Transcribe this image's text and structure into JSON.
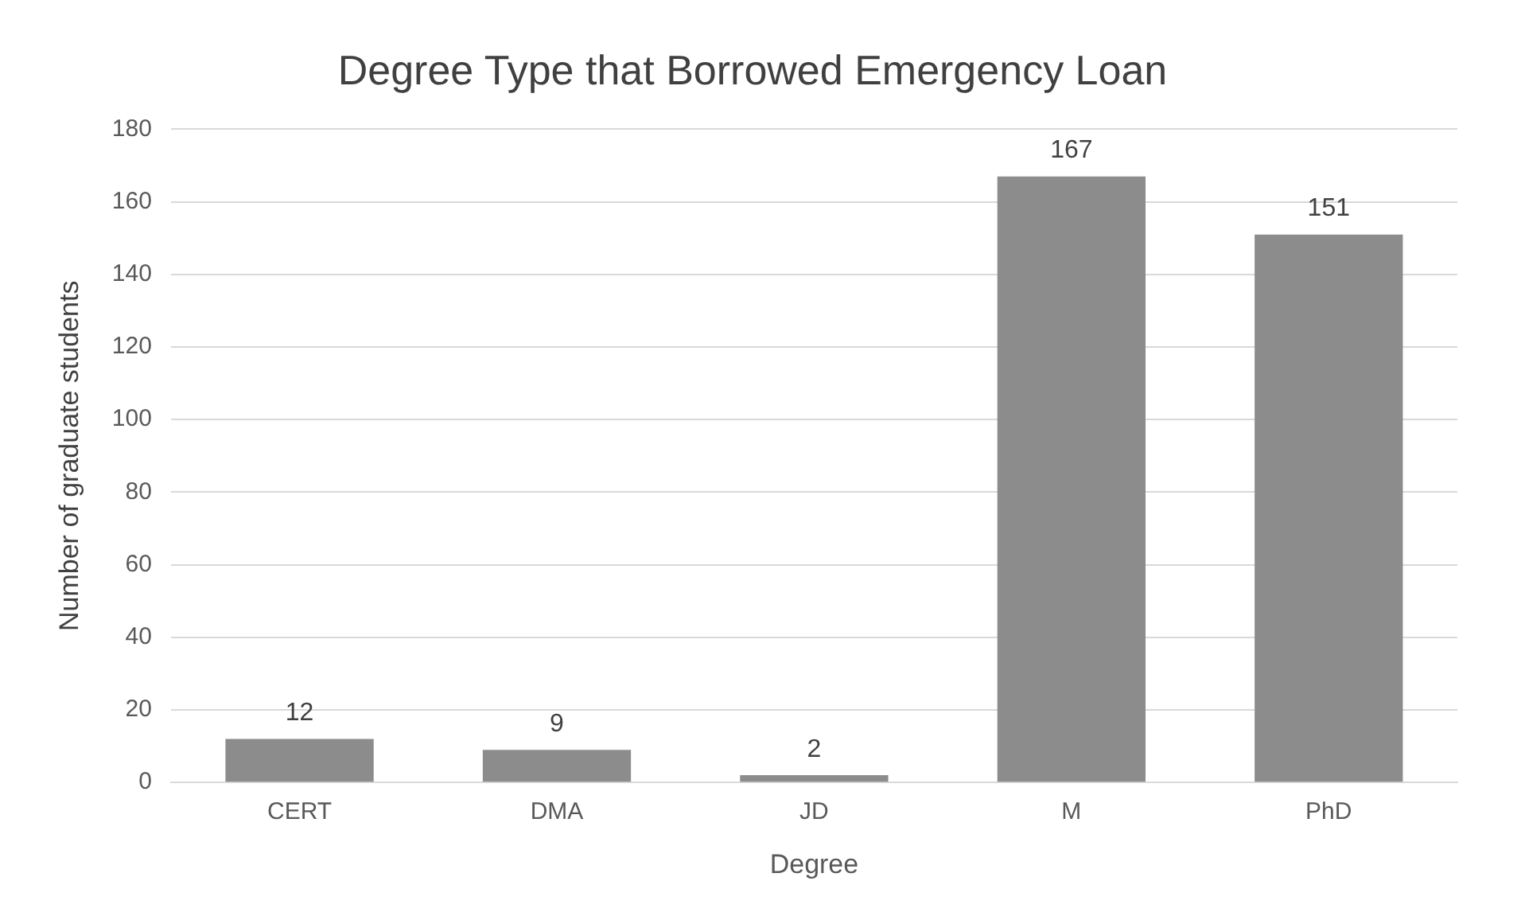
{
  "chart_data": {
    "type": "bar",
    "title": "Degree Type that Borrowed Emergency Loan",
    "xlabel": "Degree",
    "ylabel": "Number of graduate students",
    "categories": [
      "CERT",
      "DMA",
      "JD",
      "M",
      "PhD"
    ],
    "values": [
      12,
      9,
      2,
      167,
      151
    ],
    "color": "#8c8c8c",
    "ylim": [
      0,
      180
    ],
    "yticks": [
      0,
      20,
      40,
      60,
      80,
      100,
      120,
      140,
      160,
      180
    ],
    "grid": "y",
    "data_labels": true,
    "legend": false
  }
}
